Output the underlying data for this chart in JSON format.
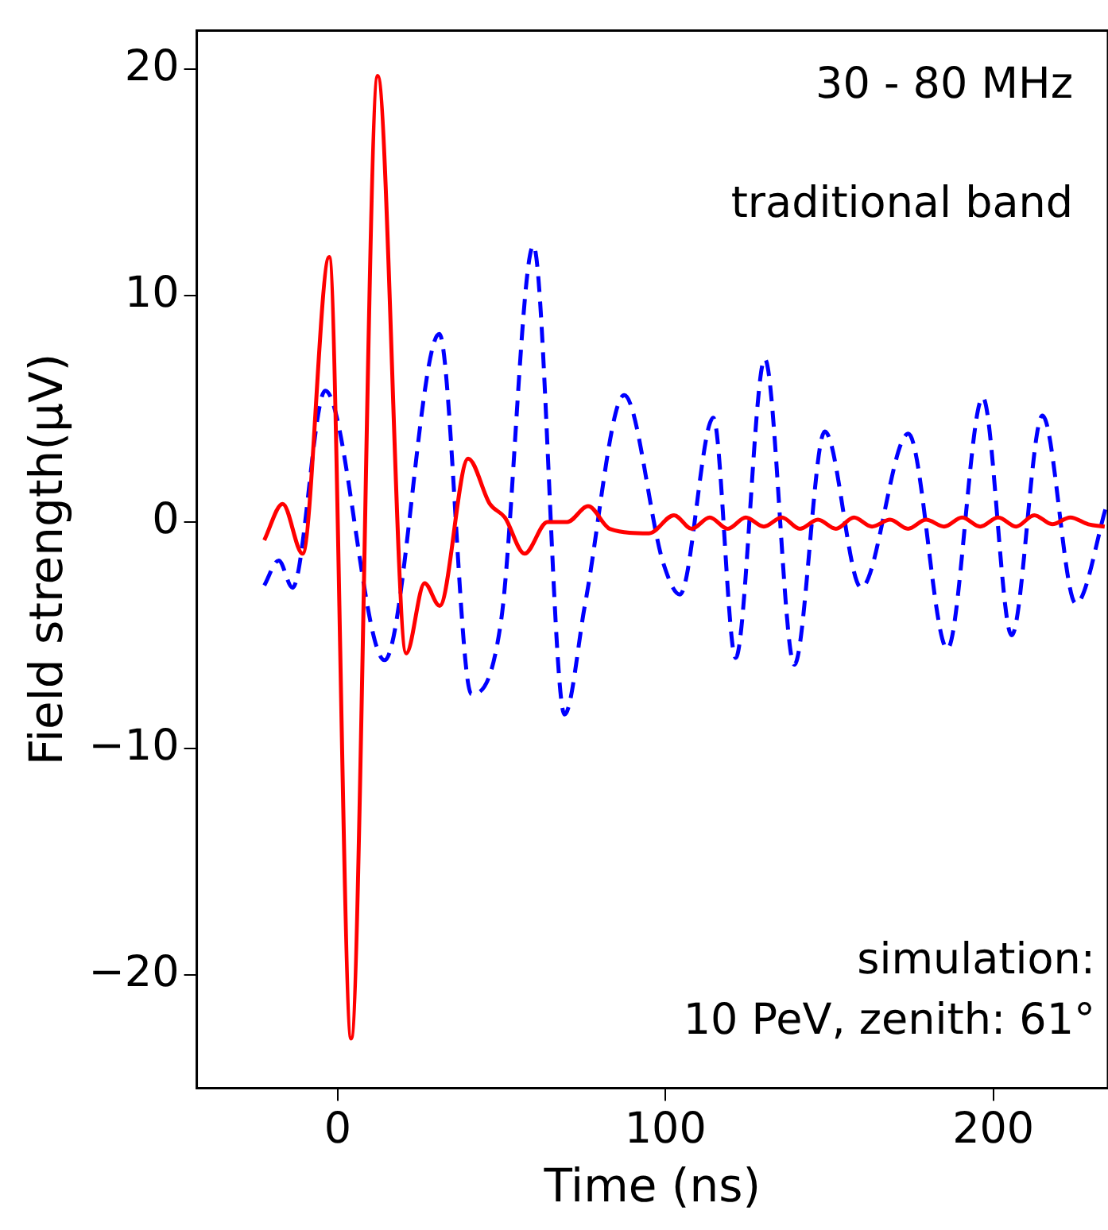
{
  "chart_data": {
    "type": "line",
    "xlabel": "Time (ns)",
    "ylabel": "Field strength(μV)",
    "annotations": [
      "30 - 80 MHz",
      "traditional band",
      "simulation:\n10 PeV, zenith: 61°"
    ],
    "xlim": [
      -43,
      235
    ],
    "xticks": [
      0,
      100,
      200
    ],
    "ylim": [
      -25,
      21.7
    ],
    "yticks": [
      {
        "value": -20,
        "label": "−20"
      },
      {
        "value": -10,
        "label": "−10"
      },
      0,
      10,
      20
    ],
    "grid": false,
    "legend": false,
    "marker": "none",
    "series": [
      {
        "color": "#ff0000",
        "line_style": "solid",
        "x": [
          -22.4,
          -16.8,
          -10.7,
          -2.6,
          4.1,
          12.2,
          20.9,
          26.5,
          31.1,
          39.8,
          46.4,
          51,
          57,
          64,
          70,
          76.4,
          83,
          95,
          102.6,
          108,
          113.5,
          119,
          124.5,
          130,
          135.5,
          141,
          146.5,
          152,
          157.5,
          163,
          168.5,
          174,
          179.5,
          185,
          190.5,
          196,
          201.5,
          207,
          212.5,
          218,
          223.5,
          229,
          234
        ],
        "values": [
          -0.8,
          0.8,
          -1.4,
          11.7,
          -22.8,
          19.7,
          -5.8,
          -2.7,
          -3.7,
          2.8,
          0.8,
          0.2,
          -1.4,
          0,
          0,
          0.7,
          -0.3,
          -0.5,
          0.3,
          -0.3,
          0.2,
          -0.3,
          0.2,
          -0.2,
          0.2,
          -0.3,
          0.1,
          -0.3,
          0.2,
          -0.2,
          0.1,
          -0.3,
          0.1,
          -0.2,
          0.2,
          -0.2,
          0.2,
          -0.2,
          0.3,
          -0.1,
          0.2,
          -0.1,
          -0.2
        ]
      },
      {
        "color": "#0000ff",
        "line_style": "dashed",
        "x": [
          -22.4,
          -18,
          -13.8,
          -3.8,
          14.3,
          31,
          40.8,
          49.9,
          59.7,
          69.2,
          75.5,
          87.4,
          99.3,
          104.4,
          114.6,
          121.4,
          130.3,
          139.3,
          148.6,
          159.7,
          174.1,
          186,
          196.8,
          205.6,
          215,
          225.2,
          234.7
        ],
        "values": [
          -2.8,
          -1.7,
          -2.9,
          5.8,
          -6.1,
          8.3,
          -7.6,
          -4.3,
          12.2,
          -8.5,
          -3.6,
          5.6,
          -1.8,
          -3.2,
          4.6,
          -6,
          7.2,
          -6.3,
          4,
          -2.9,
          3.9,
          -5.6,
          5.5,
          -5,
          4.7,
          -3.6,
          0.8
        ]
      }
    ]
  }
}
